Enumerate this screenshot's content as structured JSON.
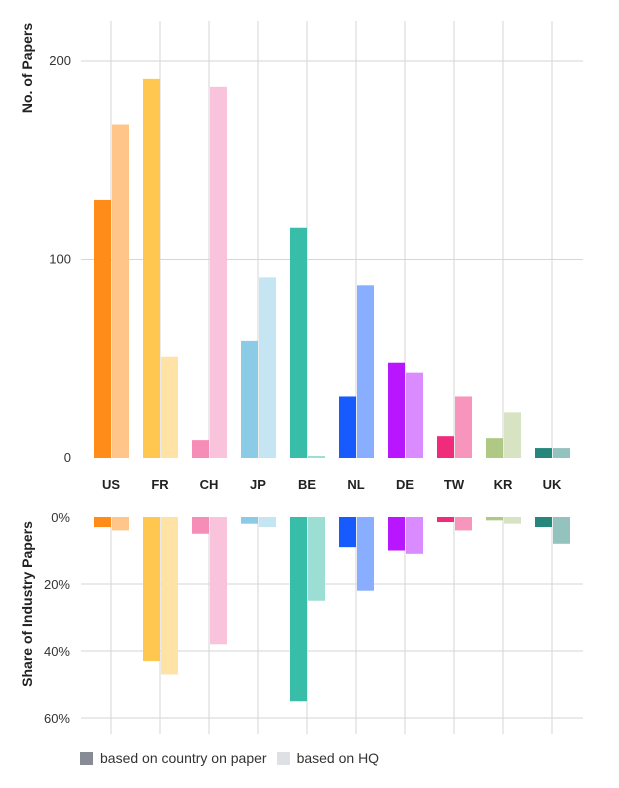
{
  "chart_data": [
    {
      "type": "bar",
      "title": "",
      "xlabel": "",
      "ylabel": "No. of Papers",
      "ylim": [
        0,
        200
      ],
      "yticks": [
        "0",
        "100",
        "200"
      ],
      "ytick_values": [
        0,
        100,
        200
      ],
      "grid": true,
      "categories": [
        "US",
        "FR",
        "CH",
        "JP",
        "BE",
        "NL",
        "DE",
        "TW",
        "KR",
        "UK"
      ],
      "series": [
        {
          "name": "based on country on paper",
          "values": [
            130,
            191,
            9,
            59,
            116,
            31,
            48,
            11,
            10,
            5
          ]
        },
        {
          "name": "based on HQ",
          "values": [
            168,
            51,
            187,
            91,
            1,
            87,
            43,
            31,
            23,
            5
          ]
        }
      ]
    },
    {
      "type": "bar",
      "title": "",
      "xlabel": "",
      "ylabel": "Share of Industry Papers",
      "ylim": [
        0,
        60
      ],
      "inverted": true,
      "yticks": [
        "0%",
        "20%",
        "40%",
        "60%"
      ],
      "ytick_values": [
        0,
        20,
        40,
        60
      ],
      "grid": true,
      "categories": [
        "US",
        "FR",
        "CH",
        "JP",
        "BE",
        "NL",
        "DE",
        "TW",
        "KR",
        "UK"
      ],
      "series": [
        {
          "name": "based on country on paper",
          "values": [
            3,
            43,
            5,
            2,
            55,
            9,
            10,
            1.5,
            1,
            3
          ]
        },
        {
          "name": "based on HQ",
          "values": [
            4,
            47,
            38,
            3,
            25,
            22,
            11,
            4,
            2,
            8
          ]
        }
      ]
    }
  ],
  "colors": {
    "paper": [
      "#ff8c19",
      "#ffc74f",
      "#f58db6",
      "#8ccbe5",
      "#38bda9",
      "#175bff",
      "#b716ff",
      "#f02b7b",
      "#afc985",
      "#25867b"
    ],
    "hq": [
      "#ffc589",
      "#ffe3a6",
      "#f9c3db",
      "#c5e5f2",
      "#9cded3",
      "#8aaeff",
      "#da8bff",
      "#f795bd",
      "#d7e3c2",
      "#94c3bd"
    ]
  },
  "legend": {
    "items": [
      {
        "label": "based on country on paper",
        "color": "#878b96"
      },
      {
        "label": "based on HQ",
        "color": "#dde0e5"
      }
    ],
    "placement": "bottom-left"
  }
}
